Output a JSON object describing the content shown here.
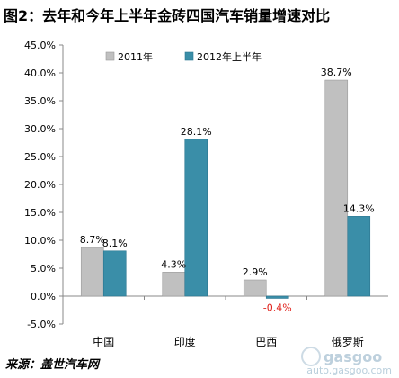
{
  "header": {
    "title": "图2：去年和今年上半年金砖四国汽车销量增速对比"
  },
  "footer": {
    "source": "来源：盖世汽车网"
  },
  "watermark": {
    "text": "auto.gasgoo.com",
    "logo_text": "gasgoo"
  },
  "chart_data": {
    "type": "bar",
    "title": "图2：去年和今年上半年金砖四国汽车销量增速对比",
    "categories": [
      "中国",
      "印度",
      "巴西",
      "俄罗斯"
    ],
    "series": [
      {
        "name": "2011年",
        "values": [
          8.7,
          4.3,
          2.9,
          38.7
        ],
        "labels": [
          "8.7%",
          "4.3%",
          "2.9%",
          "38.7%"
        ],
        "color": "#c0c0c0",
        "label_color": "#000000"
      },
      {
        "name": "2012年上半年",
        "values": [
          8.1,
          28.1,
          -0.4,
          14.3
        ],
        "labels": [
          "8.1%",
          "28.1%",
          "-0.4%",
          "14.3%"
        ],
        "color": "#3a8ea8",
        "label_color": "#000000",
        "negative_label_color": "#e0201a"
      }
    ],
    "y_ticks": [
      "45.0%",
      "40.0%",
      "35.0%",
      "30.0%",
      "25.0%",
      "20.0%",
      "15.0%",
      "10.0%",
      "5.0%",
      "0.0%",
      "-5.0%"
    ],
    "ylim": [
      -5,
      45
    ],
    "grid": false,
    "legend_position": "top"
  }
}
